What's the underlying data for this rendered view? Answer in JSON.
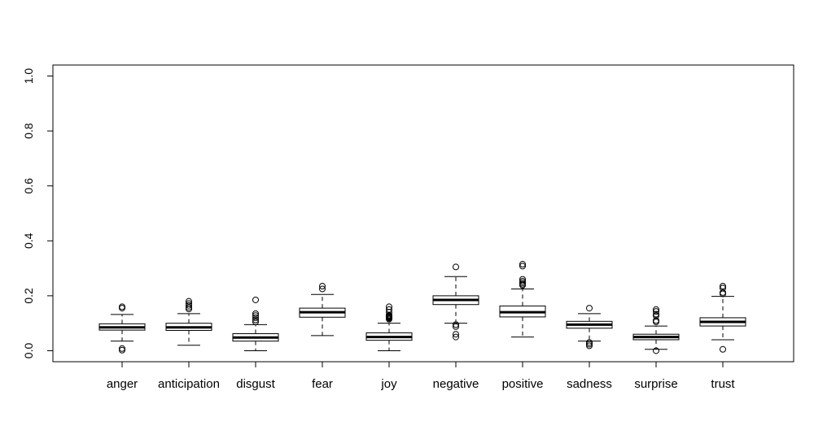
{
  "figure": {
    "background": "#ffffff",
    "axis_color": "#000000",
    "box_fill": "#ffffff"
  },
  "chart_data": {
    "type": "boxplot",
    "title": "",
    "xlabel": "",
    "ylabel": "",
    "ylim": [
      0.0,
      1.0
    ],
    "yticks": [
      0.0,
      0.2,
      0.4,
      0.6,
      0.8,
      1.0
    ],
    "ytick_labels": [
      "0.0",
      "0.2",
      "0.4",
      "0.6",
      "0.8",
      "1.0"
    ],
    "grid": false,
    "legend": "none",
    "categories": [
      "anger",
      "anticipation",
      "disgust",
      "fear",
      "joy",
      "negative",
      "positive",
      "sadness",
      "surprise",
      "trust"
    ],
    "series": [
      {
        "name": "anger",
        "whislo": 0.035,
        "q1": 0.075,
        "med": 0.085,
        "q3": 0.098,
        "whishi": 0.132,
        "outliers": [
          0.155,
          0.16,
          0.008,
          0.002
        ]
      },
      {
        "name": "anticipation",
        "whislo": 0.02,
        "q1": 0.074,
        "med": 0.085,
        "q3": 0.1,
        "whishi": 0.135,
        "outliers": [
          0.152,
          0.158,
          0.165,
          0.172,
          0.18
        ]
      },
      {
        "name": "disgust",
        "whislo": 0.0,
        "q1": 0.035,
        "med": 0.048,
        "q3": 0.062,
        "whishi": 0.095,
        "outliers": [
          0.105,
          0.112,
          0.12,
          0.128,
          0.135,
          0.185
        ]
      },
      {
        "name": "fear",
        "whislo": 0.055,
        "q1": 0.122,
        "med": 0.14,
        "q3": 0.155,
        "whishi": 0.205,
        "outliers": [
          0.225,
          0.235
        ]
      },
      {
        "name": "joy",
        "whislo": 0.0,
        "q1": 0.038,
        "med": 0.05,
        "q3": 0.065,
        "whishi": 0.1,
        "outliers": [
          0.115,
          0.118,
          0.12,
          0.121,
          0.122,
          0.123,
          0.124,
          0.125,
          0.126,
          0.128,
          0.13,
          0.14,
          0.15,
          0.16
        ]
      },
      {
        "name": "negative",
        "whislo": 0.1,
        "q1": 0.168,
        "med": 0.185,
        "q3": 0.2,
        "whishi": 0.27,
        "outliers": [
          0.305,
          0.095,
          0.088,
          0.06,
          0.05
        ]
      },
      {
        "name": "positive",
        "whislo": 0.05,
        "q1": 0.123,
        "med": 0.14,
        "q3": 0.163,
        "whishi": 0.225,
        "outliers": [
          0.315,
          0.308,
          0.26,
          0.253,
          0.247,
          0.242,
          0.238
        ]
      },
      {
        "name": "sadness",
        "whislo": 0.035,
        "q1": 0.082,
        "med": 0.095,
        "q3": 0.107,
        "whishi": 0.135,
        "outliers": [
          0.155,
          0.03,
          0.024,
          0.018
        ]
      },
      {
        "name": "surprise",
        "whislo": 0.005,
        "q1": 0.04,
        "med": 0.05,
        "q3": 0.06,
        "whishi": 0.09,
        "outliers": [
          0.15,
          0.143,
          0.133,
          0.127,
          0.11,
          0.105,
          0.0
        ]
      },
      {
        "name": "trust",
        "whislo": 0.04,
        "q1": 0.09,
        "med": 0.105,
        "q3": 0.12,
        "whishi": 0.198,
        "outliers": [
          0.235,
          0.228,
          0.212,
          0.207,
          0.005
        ]
      }
    ]
  }
}
